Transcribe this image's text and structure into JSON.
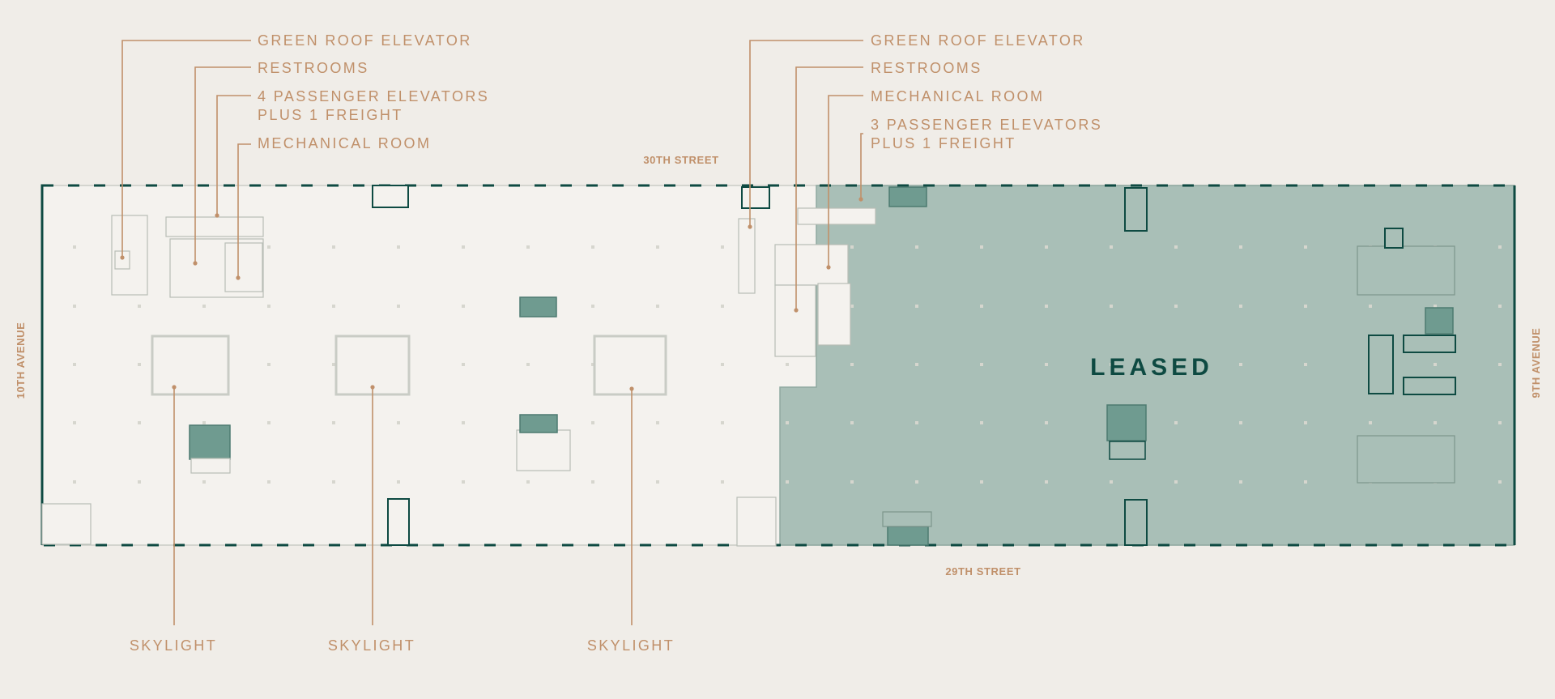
{
  "plan": {
    "streets": {
      "north": "30TH STREET",
      "south": "29TH STREET",
      "west": "10TH AVENUE",
      "east": "9TH AVENUE"
    },
    "leased_label": "LEASED",
    "callouts_west": {
      "green_roof_elevator": "GREEN ROOF ELEVATOR",
      "restrooms": "RESTROOMS",
      "elevators_line1": "4 PASSENGER ELEVATORS",
      "elevators_line2": "PLUS 1 FREIGHT",
      "mechanical_room": "MECHANICAL ROOM"
    },
    "callouts_east": {
      "green_roof_elevator": "GREEN ROOF ELEVATOR",
      "restrooms": "RESTROOMS",
      "mechanical_room": "MECHANICAL ROOM",
      "elevators_line1": "3 PASSENGER ELEVATORS",
      "elevators_line2": "PLUS 1 FREIGHT"
    },
    "skylights": [
      "SKYLIGHT",
      "SKYLIGHT",
      "SKYLIGHT"
    ]
  },
  "colors": {
    "background": "#f0ede8",
    "accent_label": "#c0906a",
    "wall": "#0e4a42",
    "leased_fill": "#a9bfb7"
  }
}
